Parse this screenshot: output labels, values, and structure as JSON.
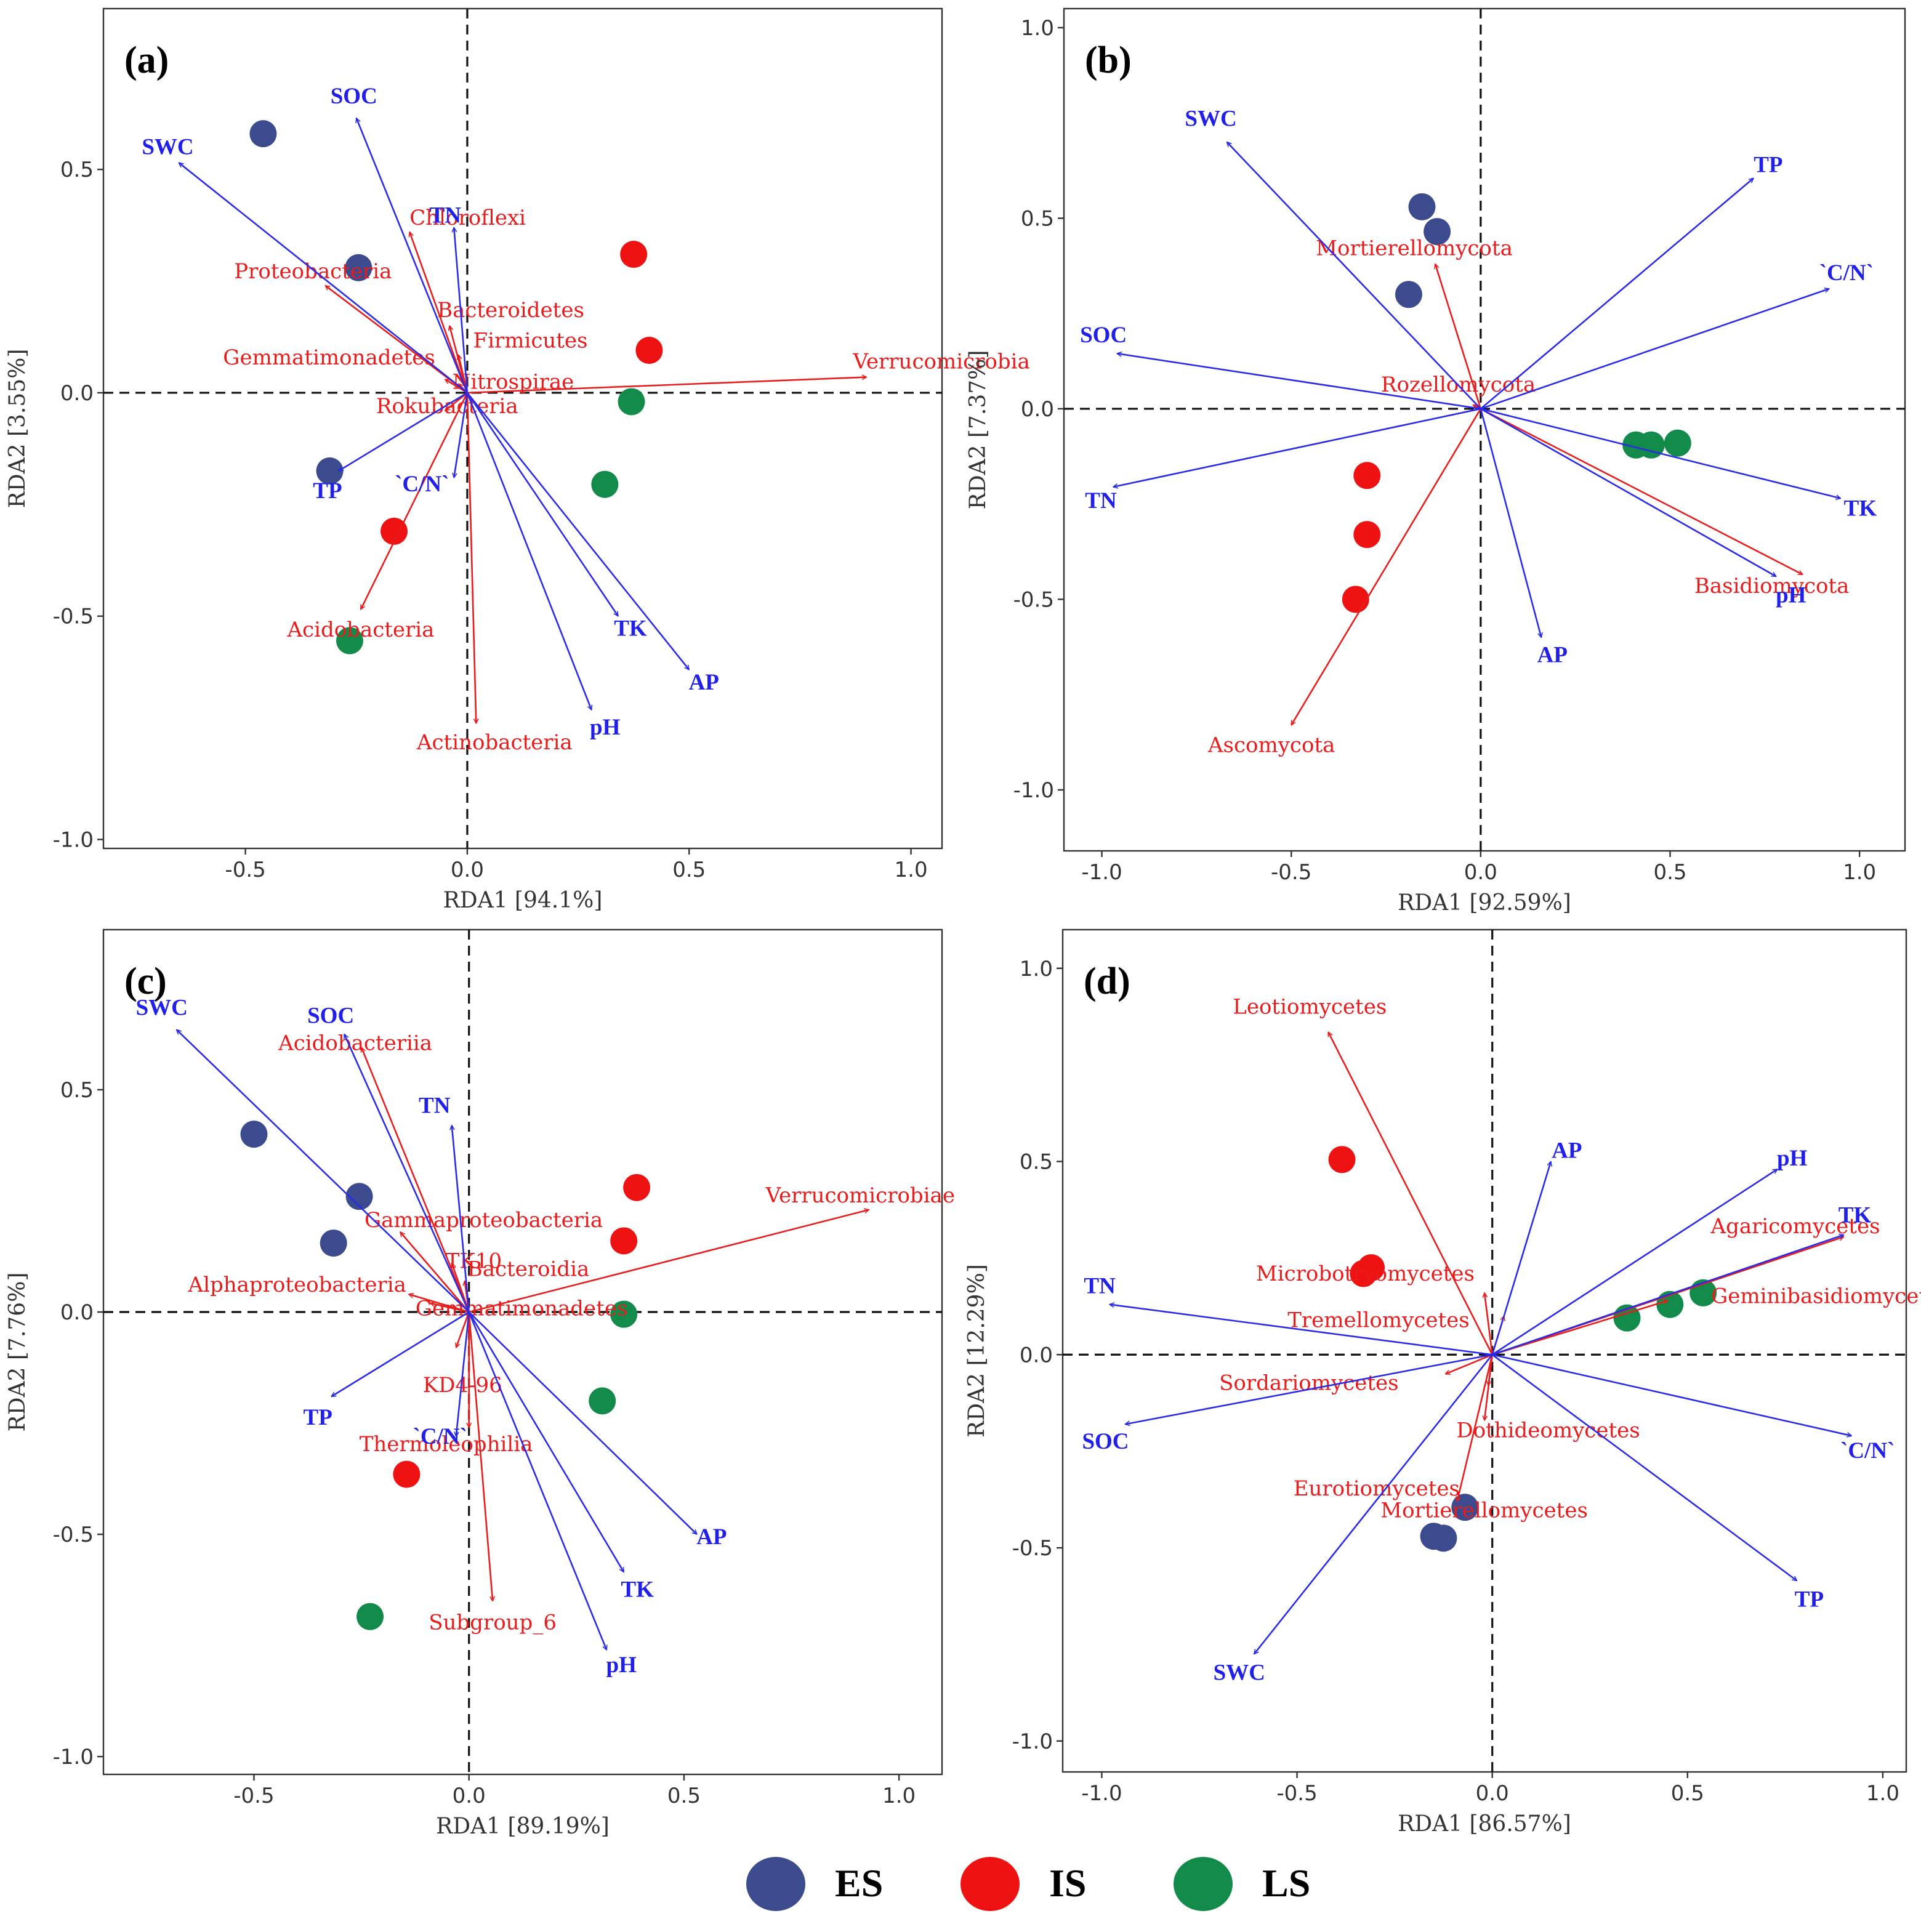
{
  "colors": {
    "ES": "#3b4b8e",
    "IS": "#ef1212",
    "LS": "#128a4a",
    "env_arrow": "#2a2ae8",
    "taxon_arrow": "#e81c1c"
  },
  "legend": [
    {
      "group": "ES",
      "label": "ES"
    },
    {
      "group": "IS",
      "label": "IS"
    },
    {
      "group": "LS",
      "label": "LS"
    }
  ],
  "chart_data": [
    {
      "type": "scatter",
      "panel": "(a)",
      "xlabel": "RDA1 [94.1%]",
      "ylabel": "RDA2 [3.55%]",
      "xlim": [
        -0.82,
        1.07
      ],
      "ylim": [
        -1.02,
        0.86
      ],
      "xticks": [
        -0.5,
        0.0,
        0.5,
        1.0
      ],
      "yticks": [
        -1.0,
        -0.5,
        0.0,
        0.5
      ],
      "points": [
        {
          "group": "ES",
          "x": -0.46,
          "y": 0.58
        },
        {
          "group": "ES",
          "x": -0.245,
          "y": 0.28
        },
        {
          "group": "ES",
          "x": -0.31,
          "y": -0.175
        },
        {
          "group": "IS",
          "x": 0.375,
          "y": 0.31
        },
        {
          "group": "IS",
          "x": 0.41,
          "y": 0.095
        },
        {
          "group": "IS",
          "x": -0.165,
          "y": -0.31
        },
        {
          "group": "LS",
          "x": 0.37,
          "y": -0.02
        },
        {
          "group": "LS",
          "x": 0.31,
          "y": -0.205
        },
        {
          "group": "LS",
          "x": -0.265,
          "y": -0.555
        }
      ],
      "env": [
        {
          "label": "SOC",
          "x": -0.25,
          "y": 0.615
        },
        {
          "label": "SWC",
          "x": -0.65,
          "y": 0.515
        },
        {
          "label": "TN",
          "x": -0.03,
          "y": 0.37
        },
        {
          "label": "TP",
          "x": -0.29,
          "y": -0.175
        },
        {
          "label": "`C/N`",
          "x": -0.03,
          "y": -0.19
        },
        {
          "label": "TK",
          "x": 0.34,
          "y": -0.5
        },
        {
          "label": "AP",
          "x": 0.5,
          "y": -0.62
        },
        {
          "label": "pH",
          "x": 0.28,
          "y": -0.71
        }
      ],
      "taxa": [
        {
          "label": "Chloroflexi",
          "x": -0.13,
          "y": 0.36
        },
        {
          "label": "Proteobacteria",
          "x": -0.32,
          "y": 0.24
        },
        {
          "label": "Bacteroidetes",
          "x": -0.04,
          "y": 0.15
        },
        {
          "label": "Firmicutes",
          "x": -0.02,
          "y": 0.085
        },
        {
          "label": "Gemmatimonadetes",
          "x": -0.05,
          "y": 0.03
        },
        {
          "label": "Verrucomicrobia",
          "x": 0.9,
          "y": 0.035
        },
        {
          "label": "Nitrospirae",
          "x": -0.02,
          "y": 0.02
        },
        {
          "label": "Rokubacteria",
          "x": -0.05,
          "y": -0.04
        },
        {
          "label": "Acidobacteria",
          "x": -0.24,
          "y": -0.485
        },
        {
          "label": "Actinobacteria",
          "x": 0.02,
          "y": -0.74
        }
      ]
    },
    {
      "type": "scatter",
      "panel": "(b)",
      "xlabel": "RDA1 [92.59%]",
      "ylabel": "RDA2 [7.37%]",
      "xlim": [
        -1.1,
        1.12
      ],
      "ylim": [
        -1.16,
        1.05
      ],
      "xticks": [
        -1.0,
        -0.5,
        0.0,
        0.5,
        1.0
      ],
      "yticks": [
        -1.0,
        -0.5,
        0.0,
        0.5,
        1.0
      ],
      "points": [
        {
          "group": "ES",
          "x": -0.155,
          "y": 0.53
        },
        {
          "group": "ES",
          "x": -0.115,
          "y": 0.465
        },
        {
          "group": "ES",
          "x": -0.19,
          "y": 0.3
        },
        {
          "group": "IS",
          "x": -0.3,
          "y": -0.175
        },
        {
          "group": "IS",
          "x": -0.3,
          "y": -0.33
        },
        {
          "group": "IS",
          "x": -0.33,
          "y": -0.5
        },
        {
          "group": "LS",
          "x": 0.41,
          "y": -0.095
        },
        {
          "group": "LS",
          "x": 0.45,
          "y": -0.095
        },
        {
          "group": "LS",
          "x": 0.52,
          "y": -0.09
        }
      ],
      "env": [
        {
          "label": "SWC",
          "x": -0.67,
          "y": 0.7
        },
        {
          "label": "TP",
          "x": 0.72,
          "y": 0.605
        },
        {
          "label": "`C/N`",
          "x": 0.92,
          "y": 0.315
        },
        {
          "label": "SOC",
          "x": -0.96,
          "y": 0.145
        },
        {
          "label": "TN",
          "x": -0.97,
          "y": -0.205
        },
        {
          "label": "TK",
          "x": 0.95,
          "y": -0.235
        },
        {
          "label": "pH",
          "x": 0.78,
          "y": -0.44
        },
        {
          "label": "AP",
          "x": 0.16,
          "y": -0.6
        }
      ],
      "taxa": [
        {
          "label": "Mortierellomycota",
          "x": -0.12,
          "y": 0.38
        },
        {
          "label": "Rozellomycota",
          "x": -0.02,
          "y": 0.01
        },
        {
          "label": "Basidiomycota",
          "x": 0.85,
          "y": -0.435
        },
        {
          "label": "Ascomycota",
          "x": -0.5,
          "y": -0.83
        }
      ]
    },
    {
      "type": "scatter",
      "panel": "(c)",
      "xlabel": "RDA1 [89.19%]",
      "ylabel": "RDA2 [7.76%]",
      "xlim": [
        -0.85,
        1.1
      ],
      "ylim": [
        -1.04,
        0.86
      ],
      "xticks": [
        -0.5,
        0.0,
        0.5,
        1.0
      ],
      "yticks": [
        -1.0,
        -0.5,
        0.0,
        0.5
      ],
      "points": [
        {
          "group": "ES",
          "x": -0.5,
          "y": 0.4
        },
        {
          "group": "ES",
          "x": -0.255,
          "y": 0.26
        },
        {
          "group": "ES",
          "x": -0.315,
          "y": 0.155
        },
        {
          "group": "IS",
          "x": 0.39,
          "y": 0.28
        },
        {
          "group": "IS",
          "x": 0.36,
          "y": 0.16
        },
        {
          "group": "IS",
          "x": -0.145,
          "y": -0.365
        },
        {
          "group": "LS",
          "x": 0.36,
          "y": -0.005
        },
        {
          "group": "LS",
          "x": 0.31,
          "y": -0.2
        },
        {
          "group": "LS",
          "x": -0.23,
          "y": -0.685
        }
      ],
      "env": [
        {
          "label": "SWC",
          "x": -0.68,
          "y": 0.635
        },
        {
          "label": "SOC",
          "x": -0.29,
          "y": 0.625
        },
        {
          "label": "TN",
          "x": -0.04,
          "y": 0.42
        },
        {
          "label": "TP",
          "x": -0.32,
          "y": -0.19
        },
        {
          "label": "`C/N`",
          "x": -0.03,
          "y": -0.28
        },
        {
          "label": "AP",
          "x": 0.53,
          "y": -0.5
        },
        {
          "label": "TK",
          "x": 0.36,
          "y": -0.585
        },
        {
          "label": "pH",
          "x": 0.32,
          "y": -0.76
        }
      ],
      "taxa": [
        {
          "label": "Acidobacteriia",
          "x": -0.25,
          "y": 0.595
        },
        {
          "label": "Verrucomicrobiae",
          "x": 0.93,
          "y": 0.23
        },
        {
          "label": "Gammaproteobacteria",
          "x": -0.16,
          "y": 0.18
        },
        {
          "label": "TK10",
          "x": -0.04,
          "y": 0.11
        },
        {
          "label": "Bacteroidia",
          "x": -0.01,
          "y": 0.07
        },
        {
          "label": "Alphaproteobacteria",
          "x": -0.14,
          "y": 0.04
        },
        {
          "label": "Gemmatimonadetes",
          "x": -0.09,
          "y": 0.02
        },
        {
          "label": "KD4-96",
          "x": -0.03,
          "y": -0.08
        },
        {
          "label": "Thermoleophilia",
          "x": 0.0,
          "y": -0.26
        },
        {
          "label": "Subgroup_6",
          "x": 0.055,
          "y": -0.65
        }
      ]
    },
    {
      "type": "scatter",
      "panel": "(d)",
      "xlabel": "RDA1 [86.57%]",
      "ylabel": "RDA2 [12.29%]",
      "xlim": [
        -1.1,
        1.06
      ],
      "ylim": [
        -1.08,
        1.1
      ],
      "xticks": [
        -1.0,
        -0.5,
        0.0,
        0.5,
        1.0
      ],
      "yticks": [
        -1.0,
        -0.5,
        0.0,
        0.5,
        1.0
      ],
      "points": [
        {
          "group": "IS",
          "x": -0.385,
          "y": 0.505
        },
        {
          "group": "IS",
          "x": -0.31,
          "y": 0.225
        },
        {
          "group": "IS",
          "x": -0.33,
          "y": 0.21
        },
        {
          "group": "LS",
          "x": 0.345,
          "y": 0.095
        },
        {
          "group": "LS",
          "x": 0.455,
          "y": 0.13
        },
        {
          "group": "LS",
          "x": 0.54,
          "y": 0.16
        },
        {
          "group": "ES",
          "x": -0.07,
          "y": -0.395
        },
        {
          "group": "ES",
          "x": -0.15,
          "y": -0.47
        },
        {
          "group": "ES",
          "x": -0.125,
          "y": -0.475
        }
      ],
      "env": [
        {
          "label": "AP",
          "x": 0.15,
          "y": 0.5
        },
        {
          "label": "pH",
          "x": 0.73,
          "y": 0.48
        },
        {
          "label": "TK",
          "x": 0.9,
          "y": 0.31
        },
        {
          "label": "TN",
          "x": -0.98,
          "y": 0.13
        },
        {
          "label": "SOC",
          "x": -0.94,
          "y": -0.18
        },
        {
          "label": "`C/N`",
          "x": 0.92,
          "y": -0.21
        },
        {
          "label": "TP",
          "x": 0.78,
          "y": -0.585
        },
        {
          "label": "SWC",
          "x": -0.61,
          "y": -0.775
        }
      ],
      "taxa": [
        {
          "label": "Leotiomycetes",
          "x": -0.42,
          "y": 0.835
        },
        {
          "label": "Agaricomycetes",
          "x": 0.9,
          "y": 0.305
        },
        {
          "label": "Microbotryomycetes",
          "x": -0.02,
          "y": 0.16
        },
        {
          "label": "Geminibasidiomycetes",
          "x": 0.45,
          "y": 0.14
        },
        {
          "label": "Tremellomycetes",
          "x": 0.03,
          "y": 0.1
        },
        {
          "label": "Sordariomycetes",
          "x": -0.12,
          "y": -0.05
        },
        {
          "label": "Dothideomycetes",
          "x": -0.01,
          "y": -0.08
        },
        {
          "label": "Eurotiomycetes",
          "x": -0.02,
          "y": -0.17
        },
        {
          "label": "Mortierellomycetes",
          "x": -0.09,
          "y": -0.38
        }
      ]
    }
  ]
}
